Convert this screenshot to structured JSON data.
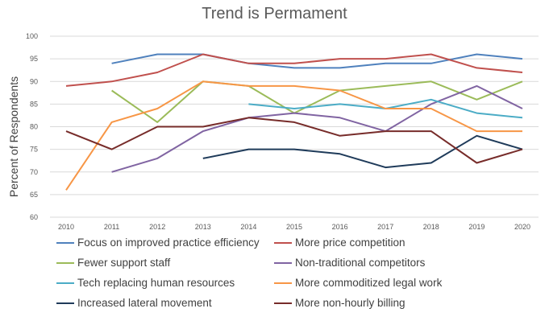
{
  "chart_data": {
    "type": "line",
    "title": "Trend is Permament",
    "ylabel": "Percent of Respondents",
    "xlabel": "",
    "ylim": [
      60,
      100
    ],
    "yticks": [
      "60",
      "65",
      "70",
      "75",
      "80",
      "85",
      "90",
      "95",
      "100"
    ],
    "categories": [
      "2010",
      "2011",
      "2012",
      "2013",
      "2014",
      "2015",
      "2016",
      "2017",
      "2018",
      "2019",
      "2020"
    ],
    "grid": true,
    "legend_position": "bottom",
    "series": [
      {
        "name": "Focus on improved practice efficiency",
        "color": "#4f81bd",
        "values": [
          null,
          94,
          96,
          96,
          94,
          93,
          93,
          94,
          94,
          96,
          95
        ]
      },
      {
        "name": "More price competition",
        "color": "#c0504d",
        "values": [
          89,
          90,
          92,
          96,
          94,
          94,
          95,
          95,
          96,
          93,
          92
        ]
      },
      {
        "name": "Fewer support staff",
        "color": "#9bbb59",
        "values": [
          null,
          88,
          81,
          90,
          89,
          83,
          88,
          89,
          90,
          86,
          90
        ]
      },
      {
        "name": "Non-traditional competitors",
        "color": "#8064a2",
        "values": [
          null,
          70,
          73,
          79,
          82,
          83,
          82,
          79,
          85,
          89,
          84
        ]
      },
      {
        "name": "Tech replacing human resources",
        "color": "#4bacc6",
        "values": [
          null,
          null,
          null,
          null,
          85,
          84,
          85,
          84,
          86,
          83,
          82
        ]
      },
      {
        "name": "More commoditized legal work",
        "color": "#f79646",
        "values": [
          66,
          81,
          84,
          90,
          89,
          89,
          88,
          84,
          84,
          79,
          79
        ]
      },
      {
        "name": "Increased lateral movement",
        "color": "#1f3b5a",
        "values": [
          null,
          null,
          null,
          73,
          75,
          75,
          74,
          71,
          72,
          78,
          75
        ]
      },
      {
        "name": "More non-hourly billing",
        "color": "#772c2a",
        "values": [
          79,
          75,
          80,
          80,
          82,
          81,
          78,
          79,
          79,
          72,
          75
        ]
      }
    ]
  }
}
